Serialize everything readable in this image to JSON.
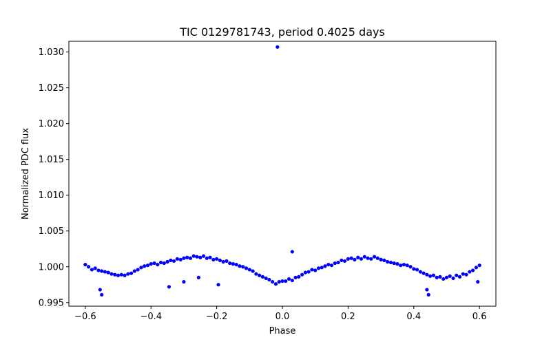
{
  "chart_data": {
    "type": "scatter",
    "title": "TIC 0129781743, period 0.4025 days",
    "xlabel": "Phase",
    "ylabel": "Normalized PDC flux",
    "xlim": [
      -0.65,
      0.65
    ],
    "ylim": [
      0.9945,
      1.0315
    ],
    "xticks": [
      -0.6,
      -0.4,
      -0.2,
      0.0,
      0.2,
      0.4,
      0.6
    ],
    "xtick_labels": [
      "−0.6",
      "−0.4",
      "−0.2",
      "0.0",
      "0.2",
      "0.4",
      "0.6"
    ],
    "yticks": [
      0.995,
      1.0,
      1.005,
      1.01,
      1.015,
      1.02,
      1.025,
      1.03
    ],
    "ytick_labels": [
      "0.995",
      "1.000",
      "1.005",
      "1.010",
      "1.015",
      "1.020",
      "1.025",
      "1.030"
    ],
    "grid": false,
    "marker_color": "#0000ff",
    "series": [
      {
        "name": "flux",
        "x": [
          -0.6,
          -0.59,
          -0.58,
          -0.57,
          -0.56,
          -0.55,
          -0.54,
          -0.53,
          -0.52,
          -0.51,
          -0.5,
          -0.49,
          -0.48,
          -0.47,
          -0.46,
          -0.45,
          -0.44,
          -0.43,
          -0.42,
          -0.41,
          -0.4,
          -0.39,
          -0.38,
          -0.37,
          -0.36,
          -0.35,
          -0.34,
          -0.33,
          -0.32,
          -0.31,
          -0.3,
          -0.29,
          -0.28,
          -0.27,
          -0.26,
          -0.25,
          -0.24,
          -0.23,
          -0.22,
          -0.21,
          -0.2,
          -0.19,
          -0.18,
          -0.17,
          -0.16,
          -0.15,
          -0.14,
          -0.13,
          -0.12,
          -0.11,
          -0.1,
          -0.09,
          -0.08,
          -0.07,
          -0.06,
          -0.05,
          -0.04,
          -0.03,
          -0.02,
          -0.01,
          0.0,
          0.01,
          0.02,
          0.03,
          0.04,
          0.05,
          0.06,
          0.07,
          0.08,
          0.09,
          0.1,
          0.11,
          0.12,
          0.13,
          0.14,
          0.15,
          0.16,
          0.17,
          0.18,
          0.19,
          0.2,
          0.21,
          0.22,
          0.23,
          0.24,
          0.25,
          0.26,
          0.27,
          0.28,
          0.29,
          0.3,
          0.31,
          0.32,
          0.33,
          0.34,
          0.35,
          0.36,
          0.37,
          0.38,
          0.39,
          0.4,
          0.41,
          0.42,
          0.43,
          0.44,
          0.45,
          0.46,
          0.47,
          0.48,
          0.49,
          0.5,
          0.51,
          0.52,
          0.53,
          0.54,
          0.55,
          0.56,
          0.57,
          0.58,
          0.59,
          0.6,
          -0.555,
          -0.55,
          -0.345,
          -0.3,
          -0.255,
          -0.195,
          -0.015,
          0.03,
          0.44,
          0.445,
          0.595
        ],
        "y": [
          1.0003,
          1.0,
          0.9996,
          0.9998,
          0.9995,
          0.9994,
          0.9993,
          0.9992,
          0.999,
          0.9989,
          0.9988,
          0.9989,
          0.9988,
          0.999,
          0.9991,
          0.9994,
          0.9996,
          0.9999,
          1.0001,
          1.0002,
          1.0004,
          1.0005,
          1.0003,
          1.0006,
          1.0005,
          1.0007,
          1.0009,
          1.0008,
          1.0011,
          1.001,
          1.0012,
          1.0013,
          1.0012,
          1.0015,
          1.0014,
          1.0013,
          1.0015,
          1.0012,
          1.0013,
          1.001,
          1.0011,
          1.0009,
          1.0007,
          1.0008,
          1.0005,
          1.0004,
          1.0003,
          1.0001,
          1.0,
          0.9998,
          0.9996,
          0.9994,
          0.999,
          0.9988,
          0.9986,
          0.9984,
          0.9982,
          0.9979,
          0.9976,
          0.9979,
          0.998,
          0.998,
          0.9983,
          0.9981,
          0.9985,
          0.9986,
          0.9989,
          0.9992,
          0.9993,
          0.9996,
          0.9995,
          0.9998,
          0.9999,
          1.0001,
          1.0003,
          1.0002,
          1.0005,
          1.0006,
          1.0009,
          1.0008,
          1.0011,
          1.0012,
          1.001,
          1.0013,
          1.0011,
          1.0014,
          1.0012,
          1.0011,
          1.0014,
          1.0012,
          1.001,
          1.0009,
          1.0007,
          1.0006,
          1.0005,
          1.0004,
          1.0002,
          1.0003,
          1.0002,
          1.0,
          0.9997,
          0.9996,
          0.9993,
          0.9991,
          0.9989,
          0.9987,
          0.9988,
          0.9985,
          0.9986,
          0.9983,
          0.9985,
          0.9987,
          0.9984,
          0.9988,
          0.9986,
          0.999,
          0.9989,
          0.9993,
          0.9995,
          0.9999,
          1.0002,
          0.9968,
          0.9961,
          0.9972,
          0.9979,
          0.9985,
          0.9975,
          1.0307,
          1.0021,
          0.9968,
          0.9961,
          0.9979
        ]
      }
    ]
  }
}
